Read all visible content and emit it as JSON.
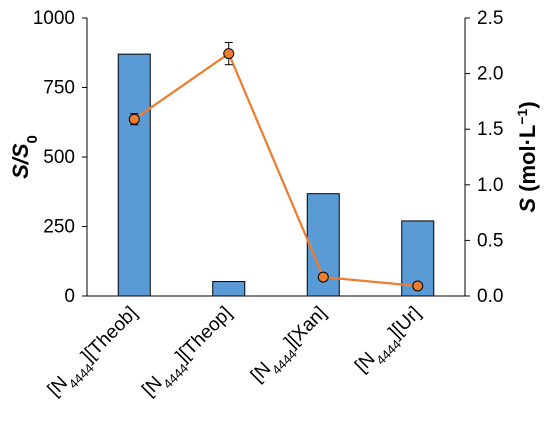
{
  "chart_data": {
    "type": "bar",
    "categories": [
      {
        "main": "[N",
        "sub": "4444",
        "suffix": "][Theob]"
      },
      {
        "main": "[N",
        "sub": "4444",
        "suffix": "][Theop]"
      },
      {
        "main": "[N",
        "sub": "4444",
        "suffix": "][Xan]"
      },
      {
        "main": "[N",
        "sub": "4444",
        "suffix": "][Ur]"
      }
    ],
    "series": [
      {
        "type": "bar",
        "axis": "left",
        "values": [
          870,
          52,
          368,
          270
        ],
        "color": "#5B9BD5"
      },
      {
        "type": "line",
        "axis": "right",
        "values": [
          1.59,
          2.18,
          0.17,
          0.09
        ],
        "errors": [
          0.05,
          0.1,
          0,
          0
        ],
        "color": "#ED7D31"
      }
    ],
    "ylabel_left": {
      "main": "S/S",
      "sub": "0"
    },
    "ylabel_right": {
      "main": "S (mol·L",
      "sup": "−1",
      "suffix": ")"
    },
    "ylim_left": [
      0,
      1000
    ],
    "ylim_right": [
      0,
      2.5
    ],
    "yticks_left": [
      "0",
      "250",
      "500",
      "750",
      "1000"
    ],
    "yticks_right": [
      "0.0",
      "0.5",
      "1.0",
      "1.5",
      "2.0",
      "2.5"
    ],
    "grid": false
  }
}
